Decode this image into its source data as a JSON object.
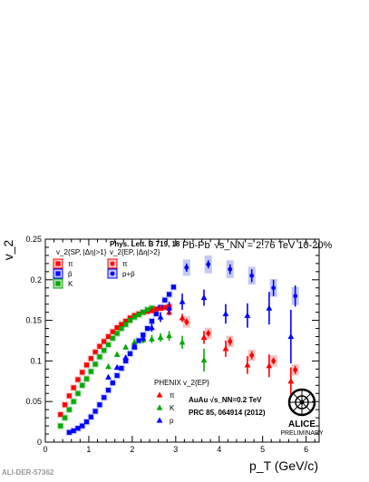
{
  "chart_data": {
    "type": "scatter",
    "ylabel": "v_2",
    "xlabel": "p_T (GeV/c)",
    "xlim": [
      0,
      6.3
    ],
    "ylim": [
      0,
      0.25
    ],
    "x_ticks": [
      0,
      1,
      2,
      3,
      4,
      5,
      6
    ],
    "y_ticks": [
      0,
      0.05,
      0.1,
      0.15,
      0.2,
      0.25
    ],
    "y_tick_labels": [
      "0",
      "0.05",
      "0.1",
      "0.15",
      "0.2",
      "0.25"
    ],
    "header": {
      "reference": "Phys. Lett. B 719, 18",
      "system": "Pb-Pb",
      "energy": "√s_NN = 2.76 TeV 10-20%"
    },
    "legend_sp_title": "v_2{SP, |Δη|>1}",
    "legend_ep_title": "v_2{EP, |Δη|>2}",
    "legend_phenix_title": "PHENIX v_2{EP}",
    "phenix_info": [
      "AuAu √s_NN=0.2 TeV",
      "PRC 85, 064914 (2012)"
    ],
    "logo_text": [
      "ALICE",
      "PRELIMINARY"
    ],
    "footer_id": "ALI-DER-57362",
    "series": [
      {
        "name": "π",
        "group": "sp",
        "marker": "square",
        "color": "#ff0000",
        "x": [
          0.35,
          0.45,
          0.55,
          0.65,
          0.75,
          0.85,
          0.95,
          1.05,
          1.15,
          1.25,
          1.35,
          1.45,
          1.55,
          1.65,
          1.75,
          1.85,
          1.95,
          2.05,
          2.15,
          2.25,
          2.35,
          2.45,
          2.55,
          2.65,
          2.75,
          2.85
        ],
        "y": [
          0.034,
          0.046,
          0.057,
          0.067,
          0.077,
          0.086,
          0.095,
          0.103,
          0.111,
          0.118,
          0.124,
          0.13,
          0.136,
          0.141,
          0.145,
          0.149,
          0.153,
          0.156,
          0.158,
          0.16,
          0.161,
          0.162,
          0.164,
          0.165,
          0.166,
          0.167
        ]
      },
      {
        "name": "K",
        "group": "sp",
        "marker": "square",
        "color": "#00aa00",
        "x": [
          0.35,
          0.45,
          0.55,
          0.65,
          0.75,
          0.85,
          0.95,
          1.05,
          1.15,
          1.25,
          1.35,
          1.45,
          1.55,
          1.65,
          1.75,
          1.85,
          1.95,
          2.05,
          2.15,
          2.25,
          2.35,
          2.45
        ],
        "y": [
          0.02,
          0.03,
          0.04,
          0.05,
          0.06,
          0.07,
          0.078,
          0.087,
          0.096,
          0.105,
          0.113,
          0.12,
          0.128,
          0.134,
          0.14,
          0.145,
          0.15,
          0.154,
          0.157,
          0.16,
          0.163,
          0.165
        ]
      },
      {
        "name": "p̄",
        "group": "sp",
        "marker": "square",
        "color": "#0000ff",
        "x": [
          0.55,
          0.65,
          0.75,
          0.85,
          0.95,
          1.05,
          1.15,
          1.25,
          1.35,
          1.45,
          1.55,
          1.65,
          1.75,
          1.85,
          1.95,
          2.05,
          2.15,
          2.25,
          2.35,
          2.45,
          2.55,
          2.65,
          2.75,
          2.85,
          2.95
        ],
        "y": [
          0.012,
          0.014,
          0.017,
          0.02,
          0.025,
          0.031,
          0.038,
          0.046,
          0.055,
          0.064,
          0.073,
          0.082,
          0.091,
          0.1,
          0.109,
          0.117,
          0.125,
          0.132,
          0.14,
          0.149,
          0.158,
          0.166,
          0.175,
          0.182,
          0.191
        ]
      },
      {
        "name": "π",
        "group": "ep",
        "marker": "circle",
        "color": "#ff0000",
        "x": [
          3.25,
          3.75,
          4.25,
          4.75,
          5.25,
          5.75
        ],
        "y": [
          0.148,
          0.134,
          0.124,
          0.107,
          0.1,
          0.089
        ],
        "yerr": [
          0.004,
          0.004,
          0.005,
          0.005,
          0.004,
          0.005
        ],
        "ysys": [
          0.007,
          0.007,
          0.007,
          0.007,
          0.007,
          0.007
        ]
      },
      {
        "name": "p+p̄",
        "group": "ep",
        "marker": "circle",
        "color": "#0000ff",
        "x": [
          3.25,
          3.75,
          4.25,
          4.75,
          5.25,
          5.75
        ],
        "y": [
          0.215,
          0.219,
          0.213,
          0.205,
          0.19,
          0.18
        ],
        "yerr": [
          0.005,
          0.005,
          0.006,
          0.008,
          0.01,
          0.013
        ],
        "ysys": [
          0.01,
          0.011,
          0.011,
          0.011,
          0.011,
          0.011
        ]
      },
      {
        "name": "π",
        "group": "phenix",
        "marker": "triangle",
        "color": "#ff0000",
        "x": [
          2.45,
          2.65,
          2.85,
          3.15,
          3.65,
          4.15,
          4.65,
          5.15,
          5.65
        ],
        "y": [
          0.162,
          0.165,
          0.16,
          0.153,
          0.129,
          0.115,
          0.095,
          0.094,
          0.075
        ],
        "yerr": [
          0.003,
          0.003,
          0.004,
          0.005,
          0.008,
          0.01,
          0.011,
          0.014,
          0.017
        ]
      },
      {
        "name": "K",
        "group": "phenix",
        "marker": "triangle",
        "color": "#00aa00",
        "x": [
          1.45,
          1.65,
          1.85,
          2.05,
          2.25,
          2.45,
          2.65,
          2.85,
          3.15,
          3.65
        ],
        "y": [
          0.093,
          0.108,
          0.117,
          0.123,
          0.126,
          0.127,
          0.129,
          0.131,
          0.123,
          0.101
        ],
        "yerr": [
          0.003,
          0.003,
          0.003,
          0.004,
          0.004,
          0.005,
          0.005,
          0.006,
          0.008,
          0.014
        ]
      },
      {
        "name": "p",
        "group": "phenix",
        "marker": "triangle",
        "color": "#0000ff",
        "x": [
          1.45,
          1.65,
          1.85,
          2.05,
          2.25,
          2.45,
          2.65,
          2.85,
          3.15,
          3.65,
          4.15,
          4.65,
          5.15,
          5.65
        ],
        "y": [
          0.08,
          0.092,
          0.104,
          0.118,
          0.128,
          0.141,
          0.154,
          0.165,
          0.173,
          0.178,
          0.158,
          0.156,
          0.165,
          0.13
        ],
        "yerr": [
          0.003,
          0.003,
          0.003,
          0.004,
          0.004,
          0.005,
          0.006,
          0.008,
          0.01,
          0.01,
          0.012,
          0.015,
          0.02,
          0.033
        ]
      }
    ]
  }
}
